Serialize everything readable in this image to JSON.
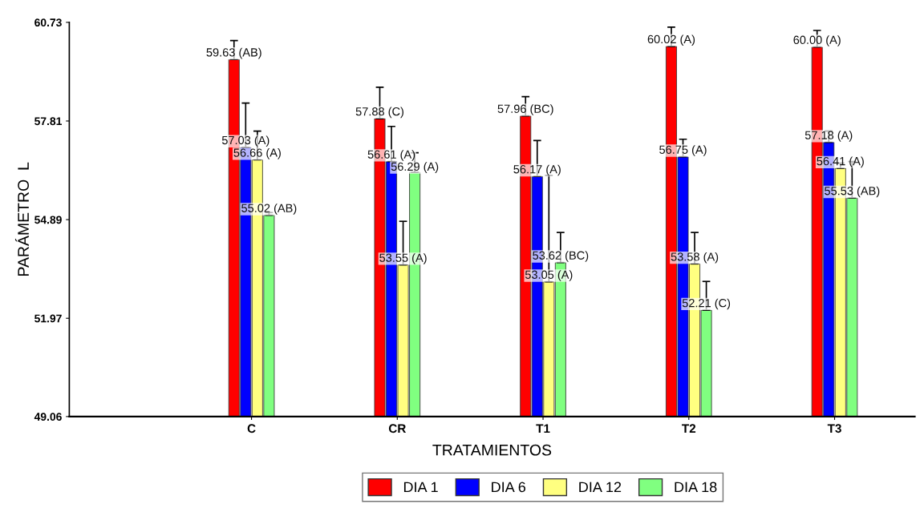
{
  "chart_data": {
    "type": "bar",
    "xlabel": "TRATAMIENTOS",
    "ylabel": "PARÁMETRO  L",
    "categories": [
      "C",
      "CR",
      "T1",
      "T2",
      "T3"
    ],
    "ylim": [
      49.06,
      60.73
    ],
    "yticks": [
      49.06,
      51.97,
      54.89,
      57.81,
      60.73
    ],
    "series": [
      {
        "name": "DIA 1",
        "color": "#ff0000",
        "values": [
          59.63,
          57.88,
          57.96,
          60.02,
          60.0
        ],
        "errors": [
          [
            59.63,
            60.19
          ],
          [
            57.88,
            58.81
          ],
          [
            57.96,
            58.53
          ],
          [
            60.02,
            60.59
          ],
          [
            60.0,
            60.49
          ]
        ],
        "value_labels": [
          "59.63 (AB)",
          "57.88 (C)",
          "57.96 (BC)",
          "60.02 (A)",
          "60.00 (A)"
        ]
      },
      {
        "name": "DIA 6",
        "color": "#0000ff",
        "values": [
          57.03,
          56.61,
          56.17,
          56.75,
          57.18
        ],
        "errors": [
          [
            57.03,
            58.34
          ],
          [
            56.61,
            57.65
          ],
          [
            56.17,
            57.23
          ],
          [
            56.75,
            57.27
          ],
          [
            57.18,
            57.51
          ]
        ],
        "value_labels": [
          "57.03 (A)",
          "56.61 (A)",
          "56.17 (A)",
          "56.75 (A)",
          "57.18 (A)"
        ]
      },
      {
        "name": "DIA 12",
        "color": "#ffff80",
        "values": [
          56.66,
          53.55,
          53.05,
          53.58,
          56.41
        ],
        "errors": [
          [
            56.66,
            57.51
          ],
          [
            53.55,
            54.84
          ],
          [
            53.05,
            56.2
          ],
          [
            53.58,
            54.51
          ],
          [
            56.41,
            56.56
          ]
        ],
        "value_labels": [
          "56.66 (A)",
          "53.55 (A)",
          "53.05 (A)",
          "53.58 (A)",
          "56.41 (A)"
        ]
      },
      {
        "name": "DIA 18",
        "color": "#80ff80",
        "values": [
          55.02,
          56.29,
          53.62,
          52.21,
          55.53
        ],
        "errors": [
          [
            55.02,
            55.1
          ],
          [
            56.29,
            56.87
          ],
          [
            53.62,
            54.51
          ],
          [
            52.21,
            53.06
          ],
          [
            55.53,
            56.61
          ]
        ],
        "value_labels": [
          "55.02 (AB)",
          "56.29 (A)",
          "53.62 (BC)",
          "52.21 (C)",
          "55.53 (AB)"
        ]
      }
    ],
    "legend": "bottom",
    "grid": false
  }
}
